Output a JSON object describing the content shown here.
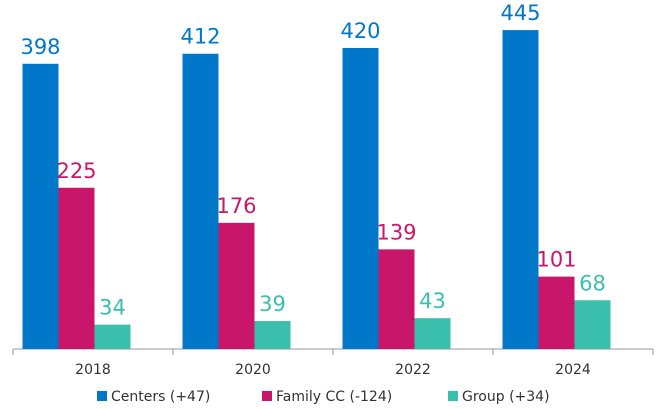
{
  "chart_data": {
    "type": "bar",
    "categories": [
      "2018",
      "2020",
      "2022",
      "2024"
    ],
    "series": [
      {
        "name": "Centers (+47)",
        "color": "#0077c8",
        "values": [
          398,
          412,
          420,
          445
        ]
      },
      {
        "name": "Family CC (-124)",
        "color": "#c8176a",
        "values": [
          225,
          176,
          139,
          101
        ]
      },
      {
        "name": "Group (+34)",
        "color": "#3bbfad",
        "values": [
          34,
          39,
          43,
          68
        ]
      }
    ],
    "ylim": [
      0,
      487
    ],
    "grid": false,
    "legend": "bottom"
  }
}
